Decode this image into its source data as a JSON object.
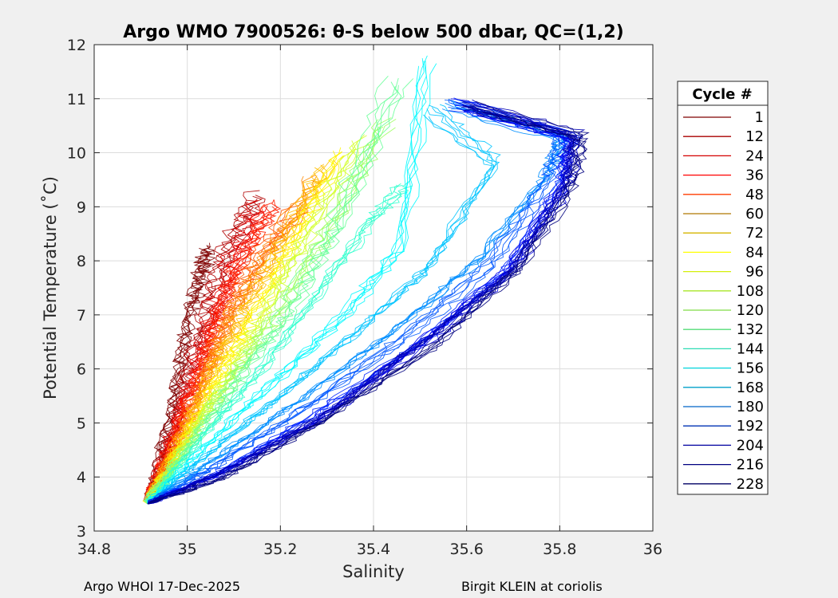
{
  "chart_data": {
    "type": "line",
    "title": "Argo WMO 7900526: θ-S below 500 dbar,  QC=(1,2)",
    "xlabel": "Salinity",
    "ylabel": "Potential Temperature (˚C)",
    "xlim": [
      34.8,
      36
    ],
    "ylim": [
      3,
      12
    ],
    "xticks": [
      34.8,
      35,
      35.2,
      35.4,
      35.6,
      35.8,
      36
    ],
    "xtick_labels": [
      "34.8",
      "35",
      "35.2",
      "35.4",
      "35.6",
      "35.8",
      "36"
    ],
    "yticks": [
      3,
      4,
      5,
      6,
      7,
      8,
      9,
      10,
      11,
      12
    ],
    "ytick_labels": [
      "3",
      "4",
      "5",
      "6",
      "7",
      "8",
      "9",
      "10",
      "11",
      "12"
    ],
    "grid": true,
    "legend": {
      "title": "Cycle #",
      "placement": "outside-right",
      "entries": [
        "1",
        "12",
        "24",
        "36",
        "48",
        "60",
        "72",
        "84",
        "96",
        "108",
        "120",
        "132",
        "144",
        "156",
        "168",
        "180",
        "192",
        "204",
        "216",
        "228"
      ],
      "colors": [
        "#7f0000",
        "#a80000",
        "#d40000",
        "#ff0000",
        "#ff3c00",
        "#b07800",
        "#d4b400",
        "#ffff00",
        "#d4f00a",
        "#a8e628",
        "#7fdc46",
        "#55dc78",
        "#2ddcb4",
        "#00d4dc",
        "#00a0c8",
        "#0064c8",
        "#0032b4",
        "#0000a0",
        "#000080",
        "#000064"
      ]
    },
    "colormap": "jet",
    "series": [
      {
        "name": "1",
        "cycle": 1,
        "s": [
          34.915,
          34.955,
          34.985,
          35.01,
          35.03,
          35.045
        ],
        "theta": [
          3.5,
          4.8,
          6.1,
          7.2,
          7.8,
          8.3
        ]
      },
      {
        "name": "12",
        "cycle": 12,
        "s": [
          34.915,
          34.97,
          35.01,
          35.05,
          35.09,
          35.15
        ],
        "theta": [
          3.5,
          4.8,
          6.2,
          7.3,
          8.3,
          9.2
        ]
      },
      {
        "name": "24",
        "cycle": 24,
        "s": [
          34.915,
          34.975,
          35.02,
          35.06,
          35.1,
          35.16
        ],
        "theta": [
          3.5,
          4.9,
          6.0,
          7.0,
          8.0,
          9.0
        ]
      },
      {
        "name": "36",
        "cycle": 36,
        "s": [
          34.915,
          34.98,
          35.03,
          35.07,
          35.12,
          35.19
        ],
        "theta": [
          3.5,
          4.9,
          6.0,
          7.0,
          8.0,
          9.0
        ]
      },
      {
        "name": "48",
        "cycle": 48,
        "s": [
          34.915,
          34.985,
          35.04,
          35.09,
          35.15,
          35.24
        ],
        "theta": [
          3.5,
          4.8,
          6.0,
          7.0,
          8.0,
          9.0
        ]
      },
      {
        "name": "60",
        "cycle": 60,
        "s": [
          34.915,
          34.99,
          35.05,
          35.1,
          35.17,
          35.28
        ],
        "theta": [
          3.5,
          4.8,
          6.0,
          7.0,
          8.0,
          9.5
        ]
      },
      {
        "name": "72",
        "cycle": 72,
        "s": [
          34.915,
          34.995,
          35.06,
          35.12,
          35.2,
          35.3
        ],
        "theta": [
          3.5,
          4.8,
          6.0,
          7.0,
          8.2,
          9.8
        ]
      },
      {
        "name": "84",
        "cycle": 84,
        "s": [
          34.915,
          34.995,
          35.07,
          35.14,
          35.22,
          35.32
        ],
        "theta": [
          3.5,
          4.7,
          5.9,
          7.0,
          8.3,
          10.0
        ]
      },
      {
        "name": "96",
        "cycle": 96,
        "s": [
          34.915,
          35.0,
          35.08,
          35.16,
          35.25,
          35.36
        ],
        "theta": [
          3.5,
          4.7,
          5.8,
          7.0,
          8.5,
          10.2
        ]
      },
      {
        "name": "108",
        "cycle": 108,
        "s": [
          34.915,
          35.0,
          35.09,
          35.19,
          35.3,
          35.42
        ],
        "theta": [
          3.5,
          4.6,
          5.8,
          7.0,
          8.6,
          10.6
        ]
      },
      {
        "name": "120",
        "cycle": 120,
        "s": [
          34.915,
          35.01,
          35.11,
          35.22,
          35.33,
          35.45
        ],
        "theta": [
          3.5,
          4.6,
          5.8,
          7.1,
          8.8,
          11.3
        ]
      },
      {
        "name": "132",
        "cycle": 132,
        "s": [
          34.915,
          35.02,
          35.15,
          35.28,
          35.39,
          35.46
        ],
        "theta": [
          3.5,
          4.6,
          5.9,
          7.4,
          8.7,
          9.4
        ]
      },
      {
        "name": "144",
        "cycle": 144,
        "s": [
          34.915,
          35.03,
          35.18,
          35.34,
          35.46,
          35.52
        ],
        "theta": [
          3.5,
          4.5,
          5.7,
          7.0,
          8.2,
          11.7
        ]
      },
      {
        "name": "156",
        "cycle": 156,
        "s": [
          34.915,
          35.04,
          35.2,
          35.38,
          35.52,
          35.66,
          35.52
        ],
        "theta": [
          3.5,
          4.4,
          5.5,
          6.8,
          7.9,
          9.8,
          10.8
        ]
      },
      {
        "name": "168",
        "cycle": 168,
        "s": [
          34.915,
          35.05,
          35.24,
          35.44,
          35.62,
          35.77,
          35.8,
          35.56
        ],
        "theta": [
          3.5,
          4.3,
          5.4,
          6.7,
          8.0,
          9.6,
          10.3,
          10.9
        ]
      },
      {
        "name": "180",
        "cycle": 180,
        "s": [
          34.915,
          35.06,
          35.26,
          35.47,
          35.65,
          35.78,
          35.81,
          35.57
        ],
        "theta": [
          3.5,
          4.2,
          5.3,
          6.6,
          7.9,
          9.5,
          10.3,
          10.9
        ]
      },
      {
        "name": "192",
        "cycle": 192,
        "s": [
          34.915,
          35.07,
          35.28,
          35.5,
          35.68,
          35.8,
          35.82,
          35.58
        ],
        "theta": [
          3.5,
          4.1,
          5.2,
          6.5,
          7.8,
          9.4,
          10.3,
          10.9
        ]
      },
      {
        "name": "204",
        "cycle": 204,
        "s": [
          34.915,
          35.08,
          35.29,
          35.51,
          35.69,
          35.81,
          35.83,
          35.59
        ],
        "theta": [
          3.5,
          4.1,
          5.1,
          6.5,
          7.8,
          9.4,
          10.3,
          10.9
        ]
      },
      {
        "name": "216",
        "cycle": 216,
        "s": [
          34.915,
          35.08,
          35.29,
          35.51,
          35.7,
          35.815,
          35.83,
          35.6
        ],
        "theta": [
          3.5,
          4.1,
          5.1,
          6.5,
          7.8,
          9.4,
          10.3,
          10.85
        ]
      },
      {
        "name": "228",
        "cycle": 228,
        "s": [
          34.915,
          35.08,
          35.3,
          35.52,
          35.7,
          35.82,
          35.84,
          35.6
        ],
        "theta": [
          3.5,
          4.0,
          5.1,
          6.4,
          7.8,
          9.4,
          10.3,
          10.85
        ]
      }
    ]
  },
  "footer": {
    "left": "Argo WHOI 17-Dec-2025",
    "right": "Birgit KLEIN at coriolis"
  }
}
